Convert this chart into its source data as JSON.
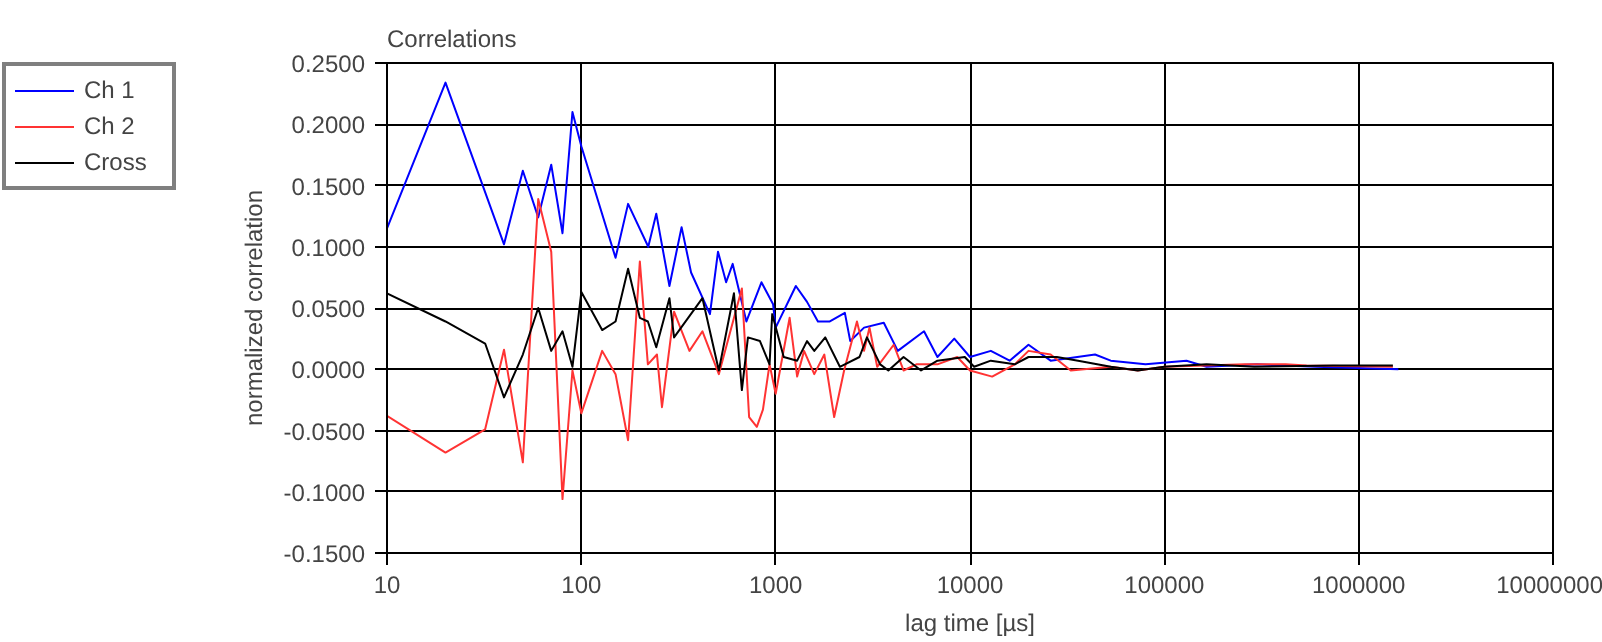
{
  "chart_data": {
    "type": "line",
    "title": "Correlations",
    "xlabel": "lag time [µs]",
    "ylabel": "normalized correlation",
    "log": "x",
    "grid": true,
    "legend": "top left",
    "marker": "none",
    "line_style": "solid",
    "xlim": [
      10,
      10000000
    ],
    "xticks": [
      10,
      100,
      1000,
      10000,
      100000,
      1000000,
      10000000
    ],
    "ylim": [
      -0.15,
      0.25
    ],
    "yticks": [
      {
        "value": -0.15,
        "label": "-0.1500"
      },
      {
        "value": -0.1,
        "label": "-0.1000"
      },
      {
        "value": -0.05,
        "label": "-0.0500"
      },
      {
        "value": 0,
        "label": "0.0000"
      },
      {
        "value": 0.05,
        "label": "0.0500"
      },
      {
        "value": 0.1,
        "label": "0.1000"
      },
      {
        "value": 0.15,
        "label": "0.1500"
      },
      {
        "value": 0.2,
        "label": "0.2000"
      },
      {
        "value": 0.25,
        "label": "0.2500"
      }
    ],
    "series": [
      {
        "name": "Ch 1",
        "color": "#0000ff",
        "x": [
          10,
          20,
          40,
          50,
          60,
          70,
          80,
          90,
          100,
          150,
          174,
          221,
          243,
          284,
          328,
          367,
          459,
          505,
          556,
          601,
          707,
          845,
          970,
          1000,
          1270,
          1450,
          1650,
          1900,
          2270,
          2420,
          2850,
          3600,
          4250,
          5800,
          6800,
          8300,
          10000,
          12800,
          16000,
          20000,
          26000,
          44000,
          53000,
          80000,
          130000,
          165000,
          300000,
          600000,
          1000000,
          1600000
        ],
        "values": [
          0.115,
          0.234,
          0.102,
          0.162,
          0.124,
          0.167,
          0.111,
          0.21,
          0.182,
          0.091,
          0.135,
          0.1,
          0.127,
          0.068,
          0.116,
          0.079,
          0.045,
          0.096,
          0.071,
          0.086,
          0.039,
          0.071,
          0.053,
          0.034,
          0.068,
          0.055,
          0.039,
          0.039,
          0.046,
          0.023,
          0.034,
          0.038,
          0.015,
          0.031,
          0.01,
          0.025,
          0.01,
          0.015,
          0.007,
          0.02,
          0.007,
          0.012,
          0.007,
          0.004,
          0.007,
          0.002,
          0.004,
          0.002,
          0.001,
          0.0
        ]
      },
      {
        "name": "Ch 2",
        "color": "#ff3333",
        "x": [
          10,
          20,
          32,
          40,
          50,
          60,
          70,
          80,
          90,
          100,
          128,
          150,
          174,
          200,
          220,
          245,
          260,
          300,
          360,
          420,
          510,
          670,
          730,
          800,
          860,
          930,
          1000,
          1180,
          1290,
          1400,
          1580,
          1780,
          2000,
          2250,
          2620,
          2850,
          3040,
          3330,
          4050,
          4550,
          5300,
          6800,
          8600,
          10000,
          13000,
          17000,
          20000,
          26000,
          33000,
          53000,
          73000,
          100000,
          260000,
          420000,
          540000,
          1500000
        ],
        "values": [
          -0.038,
          -0.068,
          -0.049,
          0.016,
          -0.076,
          0.139,
          0.096,
          -0.106,
          -0.001,
          -0.036,
          0.015,
          -0.004,
          -0.058,
          0.088,
          0.004,
          0.012,
          -0.031,
          0.047,
          0.015,
          0.031,
          -0.004,
          0.066,
          -0.039,
          -0.047,
          -0.033,
          0.004,
          -0.02,
          0.042,
          -0.006,
          0.015,
          -0.004,
          0.012,
          -0.039,
          -0.001,
          0.039,
          0.015,
          0.034,
          0.002,
          0.02,
          -0.001,
          0.004,
          0.004,
          0.01,
          -0.001,
          -0.006,
          0.004,
          0.015,
          0.012,
          -0.001,
          0.002,
          -0.001,
          0.002,
          0.004,
          0.004,
          0.003,
          0.002
        ]
      },
      {
        "name": "Cross",
        "color": "#000000",
        "x": [
          10,
          20,
          32,
          40,
          50,
          60,
          70,
          80,
          90,
          100,
          128,
          150,
          174,
          200,
          220,
          243,
          284,
          300,
          420,
          510,
          610,
          670,
          720,
          830,
          930,
          960,
          1100,
          1290,
          1450,
          1580,
          1800,
          2140,
          2700,
          2950,
          3450,
          3800,
          4550,
          5600,
          6800,
          9400,
          10500,
          12800,
          17000,
          20000,
          28000,
          36000,
          53000,
          73000,
          100000,
          165000,
          290000,
          740000,
          1500000
        ],
        "values": [
          0.062,
          0.039,
          0.021,
          -0.023,
          0.012,
          0.05,
          0.015,
          0.031,
          0.002,
          0.063,
          0.032,
          0.039,
          0.082,
          0.042,
          0.039,
          0.018,
          0.058,
          0.026,
          0.058,
          -0.001,
          0.062,
          -0.017,
          0.026,
          0.023,
          0.004,
          0.045,
          0.01,
          0.007,
          0.023,
          0.015,
          0.026,
          0.002,
          0.01,
          0.026,
          0.004,
          -0.001,
          0.01,
          -0.001,
          0.007,
          0.01,
          0.002,
          0.007,
          0.004,
          0.01,
          0.01,
          0.007,
          0.002,
          -0.001,
          0.002,
          0.004,
          0.002,
          0.003,
          0.003
        ]
      }
    ]
  }
}
